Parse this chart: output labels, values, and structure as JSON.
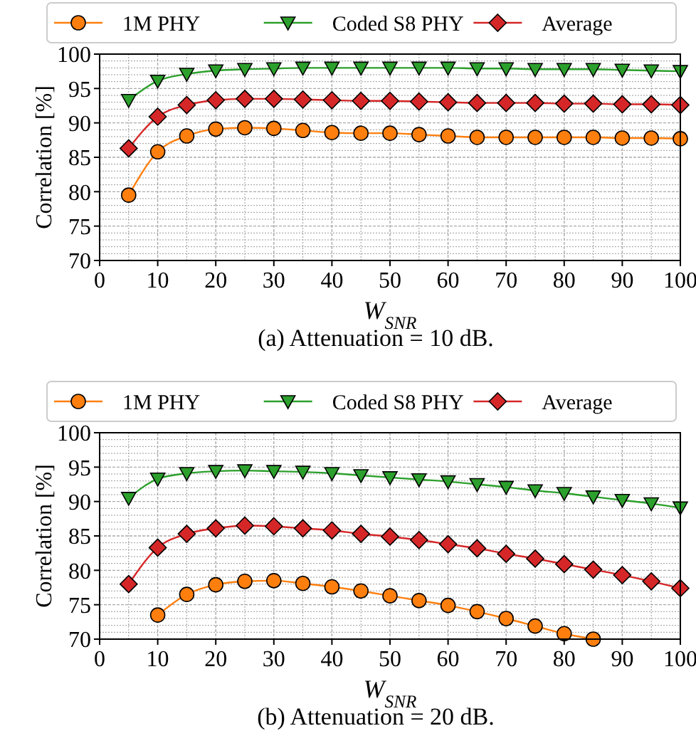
{
  "chart_data": [
    {
      "type": "line",
      "title": "(a)  Attenuation = 10 dB.",
      "xlabel": "W$_{SNR}$",
      "ylabel": "Correlation [%]",
      "x": [
        5,
        10,
        15,
        20,
        25,
        30,
        35,
        40,
        45,
        50,
        55,
        60,
        65,
        70,
        75,
        80,
        85,
        90,
        95,
        100
      ],
      "xlim": [
        0,
        100
      ],
      "xticks": [
        0,
        10,
        20,
        30,
        40,
        50,
        60,
        70,
        80,
        90,
        100
      ],
      "ylim": [
        70,
        100
      ],
      "yticks": [
        70,
        75,
        80,
        85,
        90,
        95,
        100
      ],
      "grid": true,
      "legend": "top",
      "series": [
        {
          "name": "1M PHY",
          "color": "#ff7f0e",
          "marker": "circle",
          "values": [
            79.5,
            85.8,
            88.1,
            89.1,
            89.3,
            89.2,
            88.9,
            88.6,
            88.5,
            88.5,
            88.3,
            88.1,
            87.9,
            87.9,
            87.9,
            87.9,
            87.9,
            87.8,
            87.8,
            87.7
          ]
        },
        {
          "name": "Coded S8 PHY",
          "color": "#2ca02c",
          "marker": "triangle",
          "values": [
            93.3,
            96.1,
            97.1,
            97.6,
            97.8,
            97.9,
            98.0,
            98.0,
            98.0,
            98.0,
            98.0,
            98.0,
            97.9,
            97.9,
            97.8,
            97.8,
            97.8,
            97.7,
            97.6,
            97.5
          ]
        },
        {
          "name": "Average",
          "color": "#d62728",
          "marker": "diamond",
          "values": [
            86.3,
            90.9,
            92.6,
            93.3,
            93.5,
            93.5,
            93.4,
            93.3,
            93.2,
            93.2,
            93.1,
            93.0,
            92.9,
            92.9,
            92.9,
            92.8,
            92.8,
            92.7,
            92.7,
            92.6
          ]
        }
      ]
    },
    {
      "type": "line",
      "title": "(b)  Attenuation = 20 dB.",
      "xlabel": "W$_{SNR}$",
      "ylabel": "Correlation [%]",
      "x": [
        5,
        10,
        15,
        20,
        25,
        30,
        35,
        40,
        45,
        50,
        55,
        60,
        65,
        70,
        75,
        80,
        85,
        90,
        95,
        100
      ],
      "xlim": [
        0,
        100
      ],
      "xticks": [
        0,
        10,
        20,
        30,
        40,
        50,
        60,
        70,
        80,
        90,
        100
      ],
      "ylim": [
        70,
        100
      ],
      "yticks": [
        70,
        75,
        80,
        85,
        90,
        95,
        100
      ],
      "grid": true,
      "legend": "top",
      "series": [
        {
          "name": "1M PHY",
          "color": "#ff7f0e",
          "marker": "circle",
          "values": [
            null,
            73.5,
            76.5,
            77.9,
            78.4,
            78.5,
            78.1,
            77.6,
            77.0,
            76.3,
            75.6,
            74.9,
            74.0,
            73.0,
            71.9,
            70.8,
            70.0,
            null,
            null,
            null
          ]
        },
        {
          "name": "Coded S8 PHY",
          "color": "#2ca02c",
          "marker": "triangle",
          "values": [
            90.5,
            93.3,
            94.1,
            94.4,
            94.5,
            94.4,
            94.3,
            94.1,
            93.8,
            93.5,
            93.2,
            92.9,
            92.5,
            92.1,
            91.6,
            91.2,
            90.7,
            90.2,
            89.7,
            89.1
          ]
        },
        {
          "name": "Average",
          "color": "#d62728",
          "marker": "diamond",
          "values": [
            78.0,
            83.3,
            85.3,
            86.1,
            86.5,
            86.4,
            86.1,
            85.8,
            85.3,
            84.9,
            84.4,
            83.8,
            83.2,
            82.4,
            81.7,
            80.9,
            80.1,
            79.3,
            78.4,
            77.4
          ]
        }
      ]
    }
  ]
}
